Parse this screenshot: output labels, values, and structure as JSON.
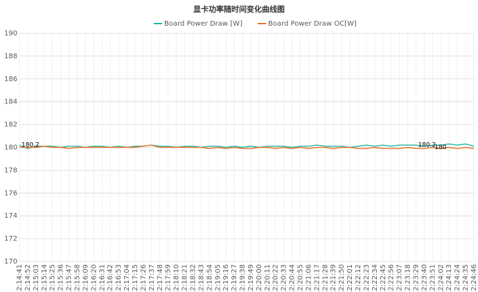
{
  "chart_data": {
    "type": "line",
    "title": "显卡功率随时间变化曲线图",
    "categories": [
      "12:14:41",
      "12:14:52",
      "12:15:03",
      "12:15:14",
      "12:15:25",
      "12:15:36",
      "12:15:47",
      "12:15:58",
      "12:16:09",
      "12:16:20",
      "12:16:31",
      "12:16:42",
      "12:16:53",
      "12:17:04",
      "12:17:15",
      "12:17:26",
      "12:17:37",
      "12:17:48",
      "12:17:59",
      "12:18:10",
      "12:18:21",
      "12:18:32",
      "12:18:43",
      "12:18:54",
      "12:19:05",
      "12:19:16",
      "12:19:27",
      "12:19:38",
      "12:19:49",
      "12:20:00",
      "12:20:11",
      "12:20:22",
      "12:20:33",
      "12:20:44",
      "12:20:55",
      "12:21:06",
      "12:21:17",
      "12:21:28",
      "12:21:39",
      "12:21:50",
      "12:22:01",
      "12:22:12",
      "12:22:23",
      "12:22:34",
      "12:22:45",
      "12:22:56",
      "12:23:07",
      "12:23:18",
      "12:23:29",
      "12:23:40",
      "12:23:51",
      "12:24:02",
      "12:24:13",
      "12:24:24",
      "12:24:35",
      "12:24:46"
    ],
    "series": [
      {
        "name": "Board Power Draw [W]",
        "color": "#1fb5a0",
        "values": [
          180.2,
          179.9,
          180.1,
          180.1,
          180.1,
          180.0,
          180.1,
          180.1,
          180.0,
          180.1,
          180.1,
          180.0,
          180.1,
          180.0,
          180.1,
          180.1,
          180.2,
          180.1,
          180.1,
          180.0,
          180.1,
          180.1,
          180.0,
          180.1,
          180.1,
          180.0,
          180.1,
          180.0,
          180.1,
          180.0,
          180.1,
          180.1,
          180.1,
          180.0,
          180.1,
          180.1,
          180.2,
          180.1,
          180.1,
          180.1,
          180.0,
          180.1,
          180.2,
          180.1,
          180.2,
          180.1,
          180.2,
          180.2,
          180.2,
          180.1,
          180.2,
          180.2,
          180.3,
          180.2,
          180.3,
          180.1
        ],
        "value_labels": [
          "180.2",
          null,
          null,
          null,
          null,
          null,
          null,
          null,
          null,
          null,
          null,
          null,
          null,
          null,
          null,
          null,
          null,
          null,
          null,
          null,
          null,
          null,
          null,
          null,
          null,
          null,
          null,
          null,
          null,
          null,
          null,
          null,
          null,
          null,
          null,
          null,
          null,
          null,
          null,
          null,
          null,
          null,
          null,
          null,
          null,
          null,
          null,
          null,
          "180.2",
          null,
          null,
          null,
          null,
          null,
          null,
          null
        ]
      },
      {
        "name": "Board Power Draw OC[W]",
        "color": "#e8702a",
        "values": [
          180.0,
          180.0,
          180.0,
          180.1,
          180.0,
          180.0,
          179.9,
          180.0,
          180.0,
          180.0,
          180.0,
          180.0,
          180.0,
          180.0,
          180.0,
          180.1,
          180.2,
          180.0,
          180.0,
          180.0,
          180.0,
          180.0,
          180.0,
          179.9,
          180.0,
          179.9,
          180.0,
          179.9,
          179.9,
          180.0,
          180.0,
          179.9,
          180.0,
          179.9,
          180.0,
          179.9,
          180.0,
          180.0,
          179.9,
          180.0,
          180.0,
          179.9,
          179.9,
          180.0,
          179.9,
          179.9,
          179.9,
          180.0,
          179.9,
          179.9,
          180,
          179.9,
          180.0,
          179.9,
          180.0,
          179.9
        ],
        "value_labels": [
          null,
          null,
          null,
          null,
          null,
          null,
          null,
          null,
          null,
          null,
          null,
          null,
          null,
          null,
          null,
          null,
          null,
          null,
          null,
          null,
          null,
          null,
          null,
          null,
          null,
          null,
          null,
          null,
          null,
          null,
          null,
          null,
          null,
          null,
          null,
          null,
          null,
          null,
          null,
          null,
          null,
          null,
          null,
          null,
          null,
          null,
          null,
          null,
          null,
          null,
          "180",
          null,
          null,
          null,
          null,
          null
        ]
      }
    ],
    "ylim": [
      170,
      190
    ],
    "yticks": [
      170,
      172,
      174,
      176,
      178,
      180,
      182,
      184,
      186,
      188,
      190
    ],
    "grid": true
  }
}
